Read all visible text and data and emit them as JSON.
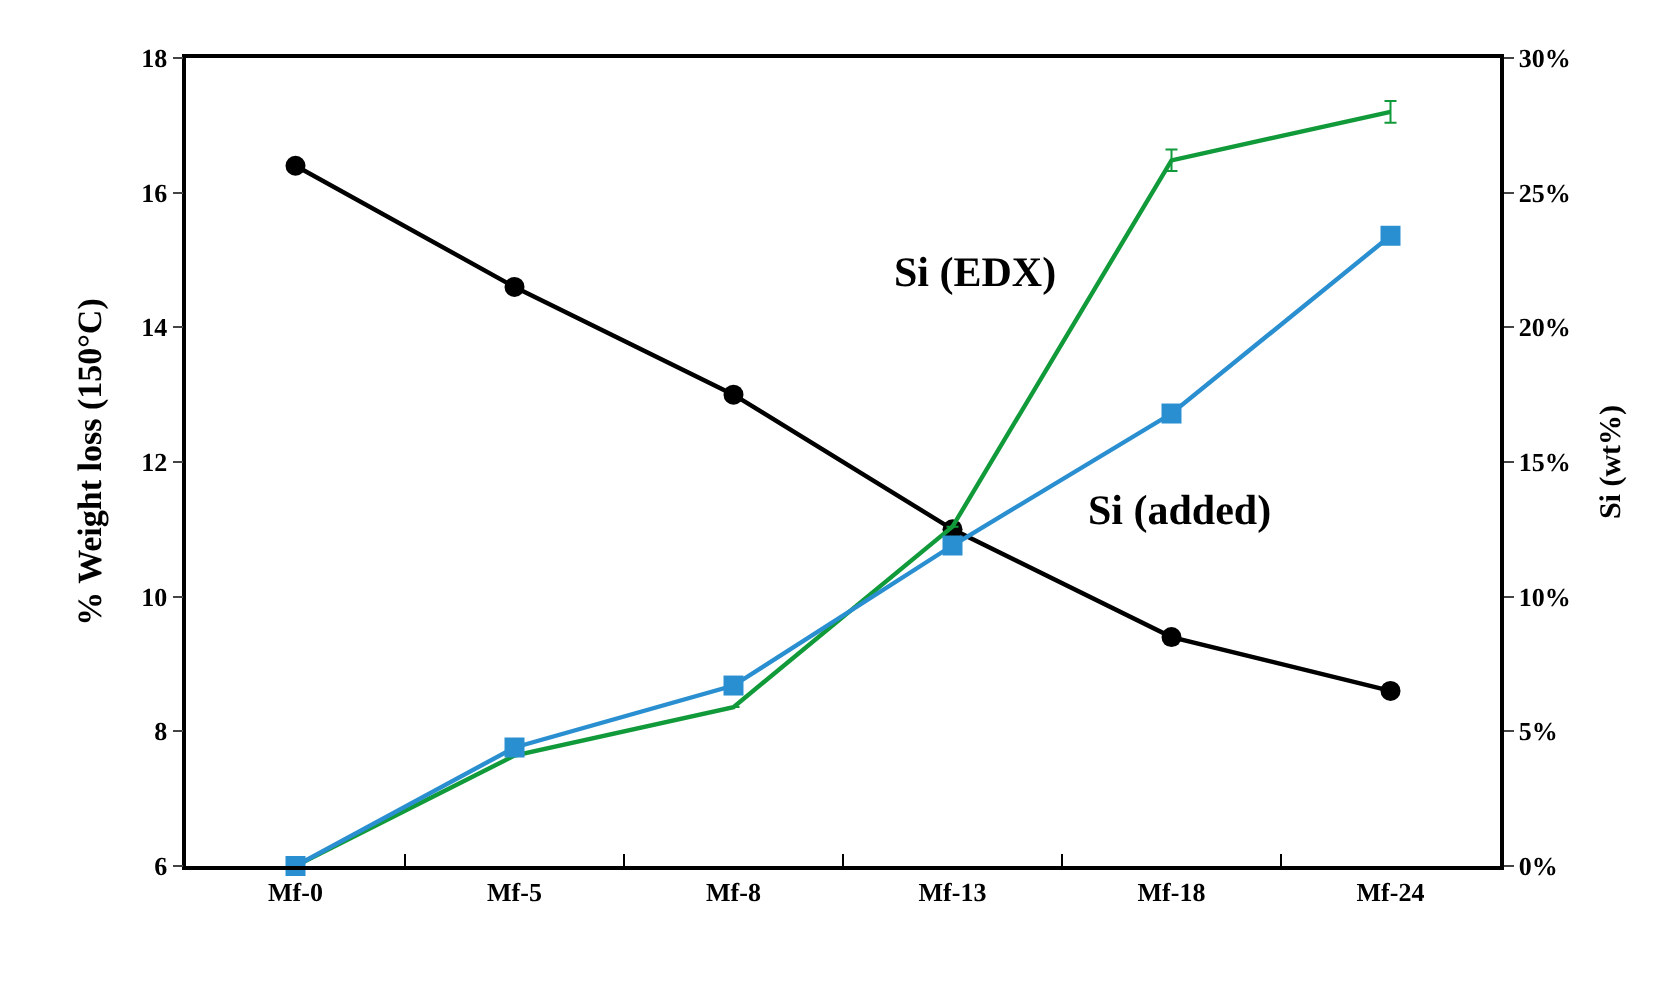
{
  "chart_data": {
    "type": "line",
    "ylabel": "% Weight loss (150°C)",
    "y2label": "Si (wt%)",
    "categories": [
      "Mf-0",
      "Mf-5",
      "Mf-8",
      "Mf-13",
      "Mf-18",
      "Mf-24"
    ],
    "ylim": [
      6,
      18
    ],
    "yticks": [
      6,
      8,
      10,
      12,
      14,
      16,
      18
    ],
    "y2lim": [
      0,
      30
    ],
    "y2ticks": [
      {
        "value": 0,
        "label": "0%"
      },
      {
        "value": 5,
        "label": "5%"
      },
      {
        "value": 10,
        "label": "10%"
      },
      {
        "value": 15,
        "label": "15%"
      },
      {
        "value": 20,
        "label": "20%"
      },
      {
        "value": 25,
        "label": "25%"
      },
      {
        "value": 30,
        "label": "30%"
      }
    ],
    "legend": false,
    "series": [
      {
        "color": "#000000",
        "marker": "circle",
        "values": [
          16.4,
          14.6,
          13.0,
          11.0,
          9.4,
          8.6
        ]
      },
      {
        "name": "Si (EDX)",
        "color": "#119a3a",
        "marker": "none",
        "axis": "y2",
        "values": [
          0,
          4.1,
          5.9,
          12.6,
          26.2,
          28.0
        ],
        "errors": [
          null,
          null,
          null,
          null,
          0.4,
          0.4
        ]
      },
      {
        "name": "Si (added)",
        "color": "#2a8fd0",
        "marker": "square",
        "axis": "y2",
        "values": [
          0,
          4.4,
          6.7,
          11.9,
          16.8,
          23.4
        ]
      }
    ]
  }
}
